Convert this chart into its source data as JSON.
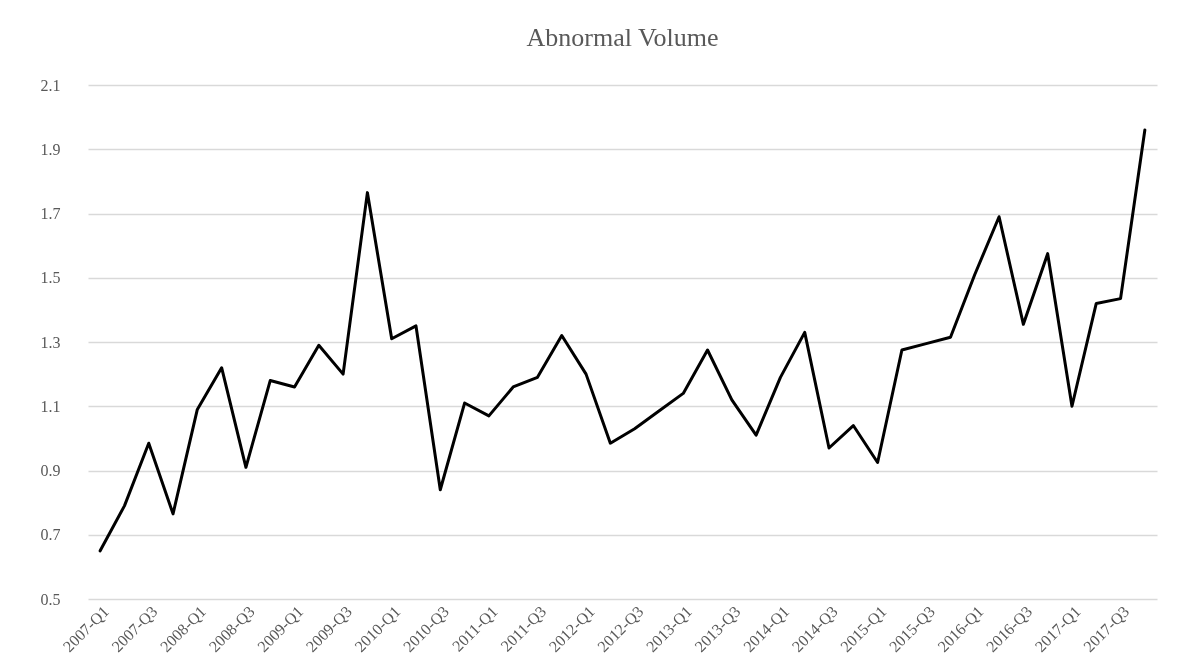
{
  "chart_data": {
    "type": "line",
    "title": "Abnormal Volume",
    "categories": [
      "2007-Q1",
      null,
      "2007-Q3",
      null,
      "2008-Q1",
      null,
      "2008-Q3",
      null,
      "2009-Q1",
      null,
      "2009-Q3",
      null,
      "2010-Q1",
      null,
      "2010-Q3",
      null,
      "2011-Q1",
      null,
      "2011-Q3",
      null,
      "2012-Q1",
      null,
      "2012-Q3",
      null,
      "2013-Q1",
      null,
      "2013-Q3",
      null,
      "2014-Q1",
      null,
      "2014-Q3",
      null,
      "2015-Q1",
      null,
      "2015-Q3",
      null,
      "2016-Q1",
      null,
      "2016-Q3",
      null,
      "2017-Q1",
      null,
      "2017-Q3",
      null
    ],
    "series": [
      {
        "color": "#000000",
        "values": [
          0.65,
          0.79,
          0.985,
          0.765,
          1.09,
          1.22,
          0.91,
          1.18,
          1.16,
          1.29,
          1.2,
          1.765,
          1.31,
          1.35,
          0.84,
          1.11,
          1.07,
          1.16,
          1.19,
          1.32,
          1.2,
          0.985,
          1.03,
          1.085,
          1.14,
          1.275,
          1.12,
          1.01,
          1.19,
          1.33,
          0.97,
          1.04,
          0.925,
          1.275,
          1.295,
          1.315,
          1.51,
          1.69,
          1.355,
          1.575,
          1.1,
          1.42,
          1.435,
          1.96
        ]
      }
    ],
    "ylim": [
      0.5,
      2.1
    ],
    "yticks": [
      0.5,
      0.7,
      0.9,
      1.1,
      1.3,
      1.5,
      1.7,
      1.9,
      2.1
    ],
    "grid": "y",
    "legend": false,
    "marker": "none",
    "line_style": "solid"
  }
}
